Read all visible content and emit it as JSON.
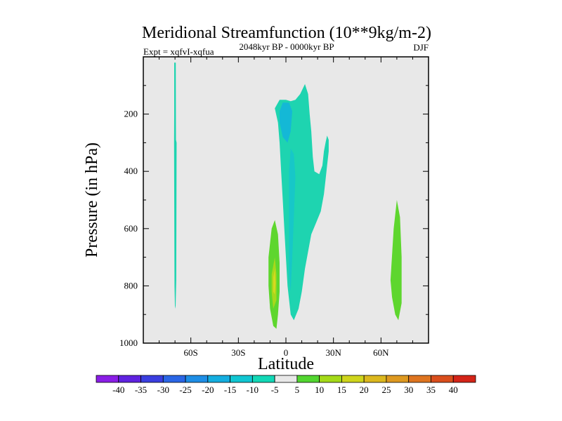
{
  "chart_data": {
    "type": "contour",
    "title": "Meridional Streamfunction (10**9kg/m-2)",
    "subtitle": "2048kyr BP - 0000kyr BP",
    "left_label": "Expt = xqfvI-xqfua",
    "right_label": "DJF",
    "xlabel": "Latitude",
    "ylabel": "Pressure (in hPa)",
    "xlim": [
      -90,
      90
    ],
    "ylim": [
      1000,
      0
    ],
    "x_ticks": [
      {
        "value": -60,
        "label": "60S"
      },
      {
        "value": -30,
        "label": "30S"
      },
      {
        "value": 0,
        "label": "0"
      },
      {
        "value": 30,
        "label": "30N"
      },
      {
        "value": 60,
        "label": "60N"
      }
    ],
    "y_ticks": [
      {
        "value": 200,
        "label": "200"
      },
      {
        "value": 400,
        "label": "400"
      },
      {
        "value": 600,
        "label": "600"
      },
      {
        "value": 800,
        "label": "800"
      },
      {
        "value": 1000,
        "label": "1000"
      }
    ],
    "background_color": "#e8e8e8",
    "regions": [
      {
        "name": "cell-70s",
        "level": -5,
        "color": "#1ed4b0",
        "points": [
          [
            -70.5,
            20
          ],
          [
            -69.5,
            20
          ],
          [
            -69.4,
            290
          ],
          [
            -69.0,
            300
          ],
          [
            -69.2,
            780
          ],
          [
            -69.6,
            870
          ],
          [
            -70.0,
            880
          ],
          [
            -70.3,
            800
          ],
          [
            -70.6,
            300
          ],
          [
            -70.5,
            200
          ]
        ]
      },
      {
        "name": "cell-equator",
        "level": -5,
        "color": "#1ed4b0",
        "points": [
          [
            -7,
            180
          ],
          [
            -4,
            150
          ],
          [
            0,
            150
          ],
          [
            3,
            155
          ],
          [
            6,
            150
          ],
          [
            9,
            130
          ],
          [
            12,
            95
          ],
          [
            14,
            130
          ],
          [
            15,
            200
          ],
          [
            16,
            260
          ],
          [
            17,
            350
          ],
          [
            18,
            400
          ],
          [
            21,
            410
          ],
          [
            23,
            380
          ],
          [
            24,
            330
          ],
          [
            25,
            300
          ],
          [
            26,
            275
          ],
          [
            27,
            290
          ],
          [
            27,
            330
          ],
          [
            26,
            380
          ],
          [
            25,
            430
          ],
          [
            24,
            480
          ],
          [
            22,
            540
          ],
          [
            19,
            580
          ],
          [
            16,
            620
          ],
          [
            14,
            680
          ],
          [
            12,
            740
          ],
          [
            10,
            820
          ],
          [
            8,
            880
          ],
          [
            5,
            920
          ],
          [
            3,
            900
          ],
          [
            1,
            800
          ],
          [
            0,
            700
          ],
          [
            -1,
            600
          ],
          [
            -2,
            500
          ],
          [
            -3,
            400
          ],
          [
            -4,
            300
          ],
          [
            -5,
            230
          ]
        ]
      },
      {
        "name": "cell-equator-core",
        "level": -10,
        "color": "#14b8d6",
        "points": [
          [
            -4,
            190
          ],
          [
            -2,
            160
          ],
          [
            2,
            160
          ],
          [
            4,
            190
          ],
          [
            3,
            260
          ],
          [
            1,
            300
          ],
          [
            -2,
            280
          ],
          [
            -4,
            230
          ]
        ]
      },
      {
        "name": "cell-equator-tongue",
        "level": -10,
        "color": "#17c7c8",
        "points": [
          [
            3,
            320
          ],
          [
            5,
            340
          ],
          [
            6,
            420
          ],
          [
            5,
            560
          ],
          [
            4,
            700
          ],
          [
            3,
            820
          ],
          [
            2,
            760
          ],
          [
            2,
            560
          ],
          [
            2,
            400
          ]
        ]
      },
      {
        "name": "cell-10s",
        "level": 5,
        "color": "#5ed62e",
        "points": [
          [
            -11,
            700
          ],
          [
            -9,
            600
          ],
          [
            -7,
            570
          ],
          [
            -5,
            620
          ],
          [
            -4,
            720
          ],
          [
            -4,
            820
          ],
          [
            -5,
            900
          ],
          [
            -6,
            950
          ],
          [
            -8,
            940
          ],
          [
            -10,
            880
          ],
          [
            -11,
            800
          ]
        ]
      },
      {
        "name": "cell-10s-core",
        "level": 10,
        "color": "#a8d81c",
        "points": [
          [
            -9,
            760
          ],
          [
            -7,
            700
          ],
          [
            -6,
            760
          ],
          [
            -6,
            850
          ],
          [
            -8,
            880
          ],
          [
            -9,
            820
          ]
        ]
      },
      {
        "name": "cell-10s-peak",
        "level": 15,
        "color": "#d8d820",
        "points": [
          [
            -8,
            770
          ],
          [
            -7,
            740
          ],
          [
            -6.5,
            790
          ],
          [
            -7,
            830
          ],
          [
            -8,
            820
          ]
        ]
      },
      {
        "name": "cell-70n",
        "level": 5,
        "color": "#5ed62e",
        "points": [
          [
            66,
            780
          ],
          [
            68,
            600
          ],
          [
            70,
            500
          ],
          [
            72,
            560
          ],
          [
            73,
            700
          ],
          [
            73,
            860
          ],
          [
            71,
            920
          ],
          [
            69,
            900
          ],
          [
            67,
            840
          ]
        ]
      }
    ],
    "colorbar": {
      "labels": [
        "-40",
        "-35",
        "-30",
        "-25",
        "-20",
        "-15",
        "-10",
        "-5",
        "5",
        "10",
        "15",
        "20",
        "25",
        "30",
        "35",
        "40"
      ],
      "colors": [
        "#8a1ee6",
        "#5f22e0",
        "#3a3ee0",
        "#2a66e6",
        "#1e8ee6",
        "#14aee0",
        "#10c6d2",
        "#12d8b6",
        "#e8e8e8",
        "#52d630",
        "#a4da18",
        "#cfd51c",
        "#dcb81e",
        "#de9920",
        "#de7420",
        "#da4e1c",
        "#d42418"
      ]
    }
  }
}
